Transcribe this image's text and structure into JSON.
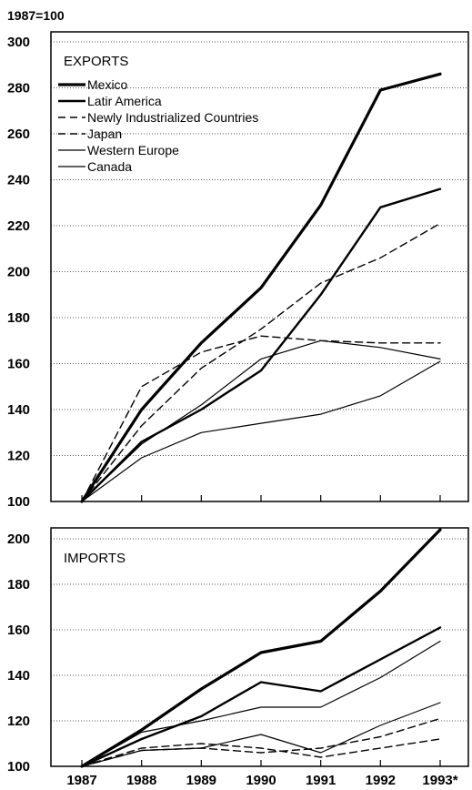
{
  "base_label": "1987=100",
  "chart_data": [
    {
      "type": "line",
      "title": "EXPORTS",
      "x": [
        "1987",
        "1988",
        "1989",
        "1990",
        "1991",
        "1992",
        "1993*"
      ],
      "ylim": [
        100,
        300
      ],
      "yticks": [
        100,
        120,
        140,
        160,
        180,
        200,
        220,
        240,
        260,
        280,
        300
      ],
      "grid": true,
      "legend": "top-left",
      "series": [
        {
          "name": "Mexico",
          "values": [
            100,
            140,
            169,
            193,
            229,
            279,
            286
          ],
          "style": "solid-thick"
        },
        {
          "name": "Latir America",
          "values": [
            100,
            126,
            140,
            157,
            190,
            228,
            236
          ],
          "style": "solid-medium"
        },
        {
          "name": "Newly Industrialized Countries",
          "values": [
            100,
            133,
            158,
            175,
            195,
            206,
            221
          ],
          "style": "dashed"
        },
        {
          "name": "Japan",
          "values": [
            100,
            150,
            165,
            172,
            170,
            169,
            169
          ],
          "style": "dashed"
        },
        {
          "name": "Western Europe",
          "values": [
            100,
            125,
            142,
            162,
            170,
            167,
            162
          ],
          "style": "solid-thin"
        },
        {
          "name": "Canada",
          "values": [
            100,
            119,
            130,
            134,
            138,
            146,
            161
          ],
          "style": "solid-thin"
        }
      ]
    },
    {
      "type": "line",
      "title": "IMPORTS",
      "x": [
        "1987",
        "1988",
        "1989",
        "1990",
        "1991",
        "1992",
        "1993*"
      ],
      "ylim": [
        100,
        200
      ],
      "yticks": [
        100,
        120,
        140,
        160,
        180,
        200
      ],
      "grid": true,
      "series": [
        {
          "name": "Mexico",
          "values": [
            100,
            116,
            134,
            150,
            155,
            177,
            204
          ],
          "style": "solid-thick"
        },
        {
          "name": "Latir America",
          "values": [
            100,
            112,
            122,
            137,
            133,
            147,
            161
          ],
          "style": "solid-medium"
        },
        {
          "name": "Newly Industrialized Countries",
          "values": [
            100,
            107,
            108,
            106,
            108,
            113,
            121
          ],
          "style": "dashed"
        },
        {
          "name": "Japan",
          "values": [
            100,
            108,
            110,
            108,
            104,
            108,
            112
          ],
          "style": "dashed"
        },
        {
          "name": "Western Europe",
          "values": [
            100,
            115,
            120,
            126,
            126,
            139,
            155
          ],
          "style": "solid-thin"
        },
        {
          "name": "Canada",
          "values": [
            100,
            107,
            108,
            114,
            106,
            118,
            128
          ],
          "style": "solid-thin"
        }
      ]
    }
  ],
  "colors": {
    "line": "#000000",
    "grid": "#555555"
  }
}
